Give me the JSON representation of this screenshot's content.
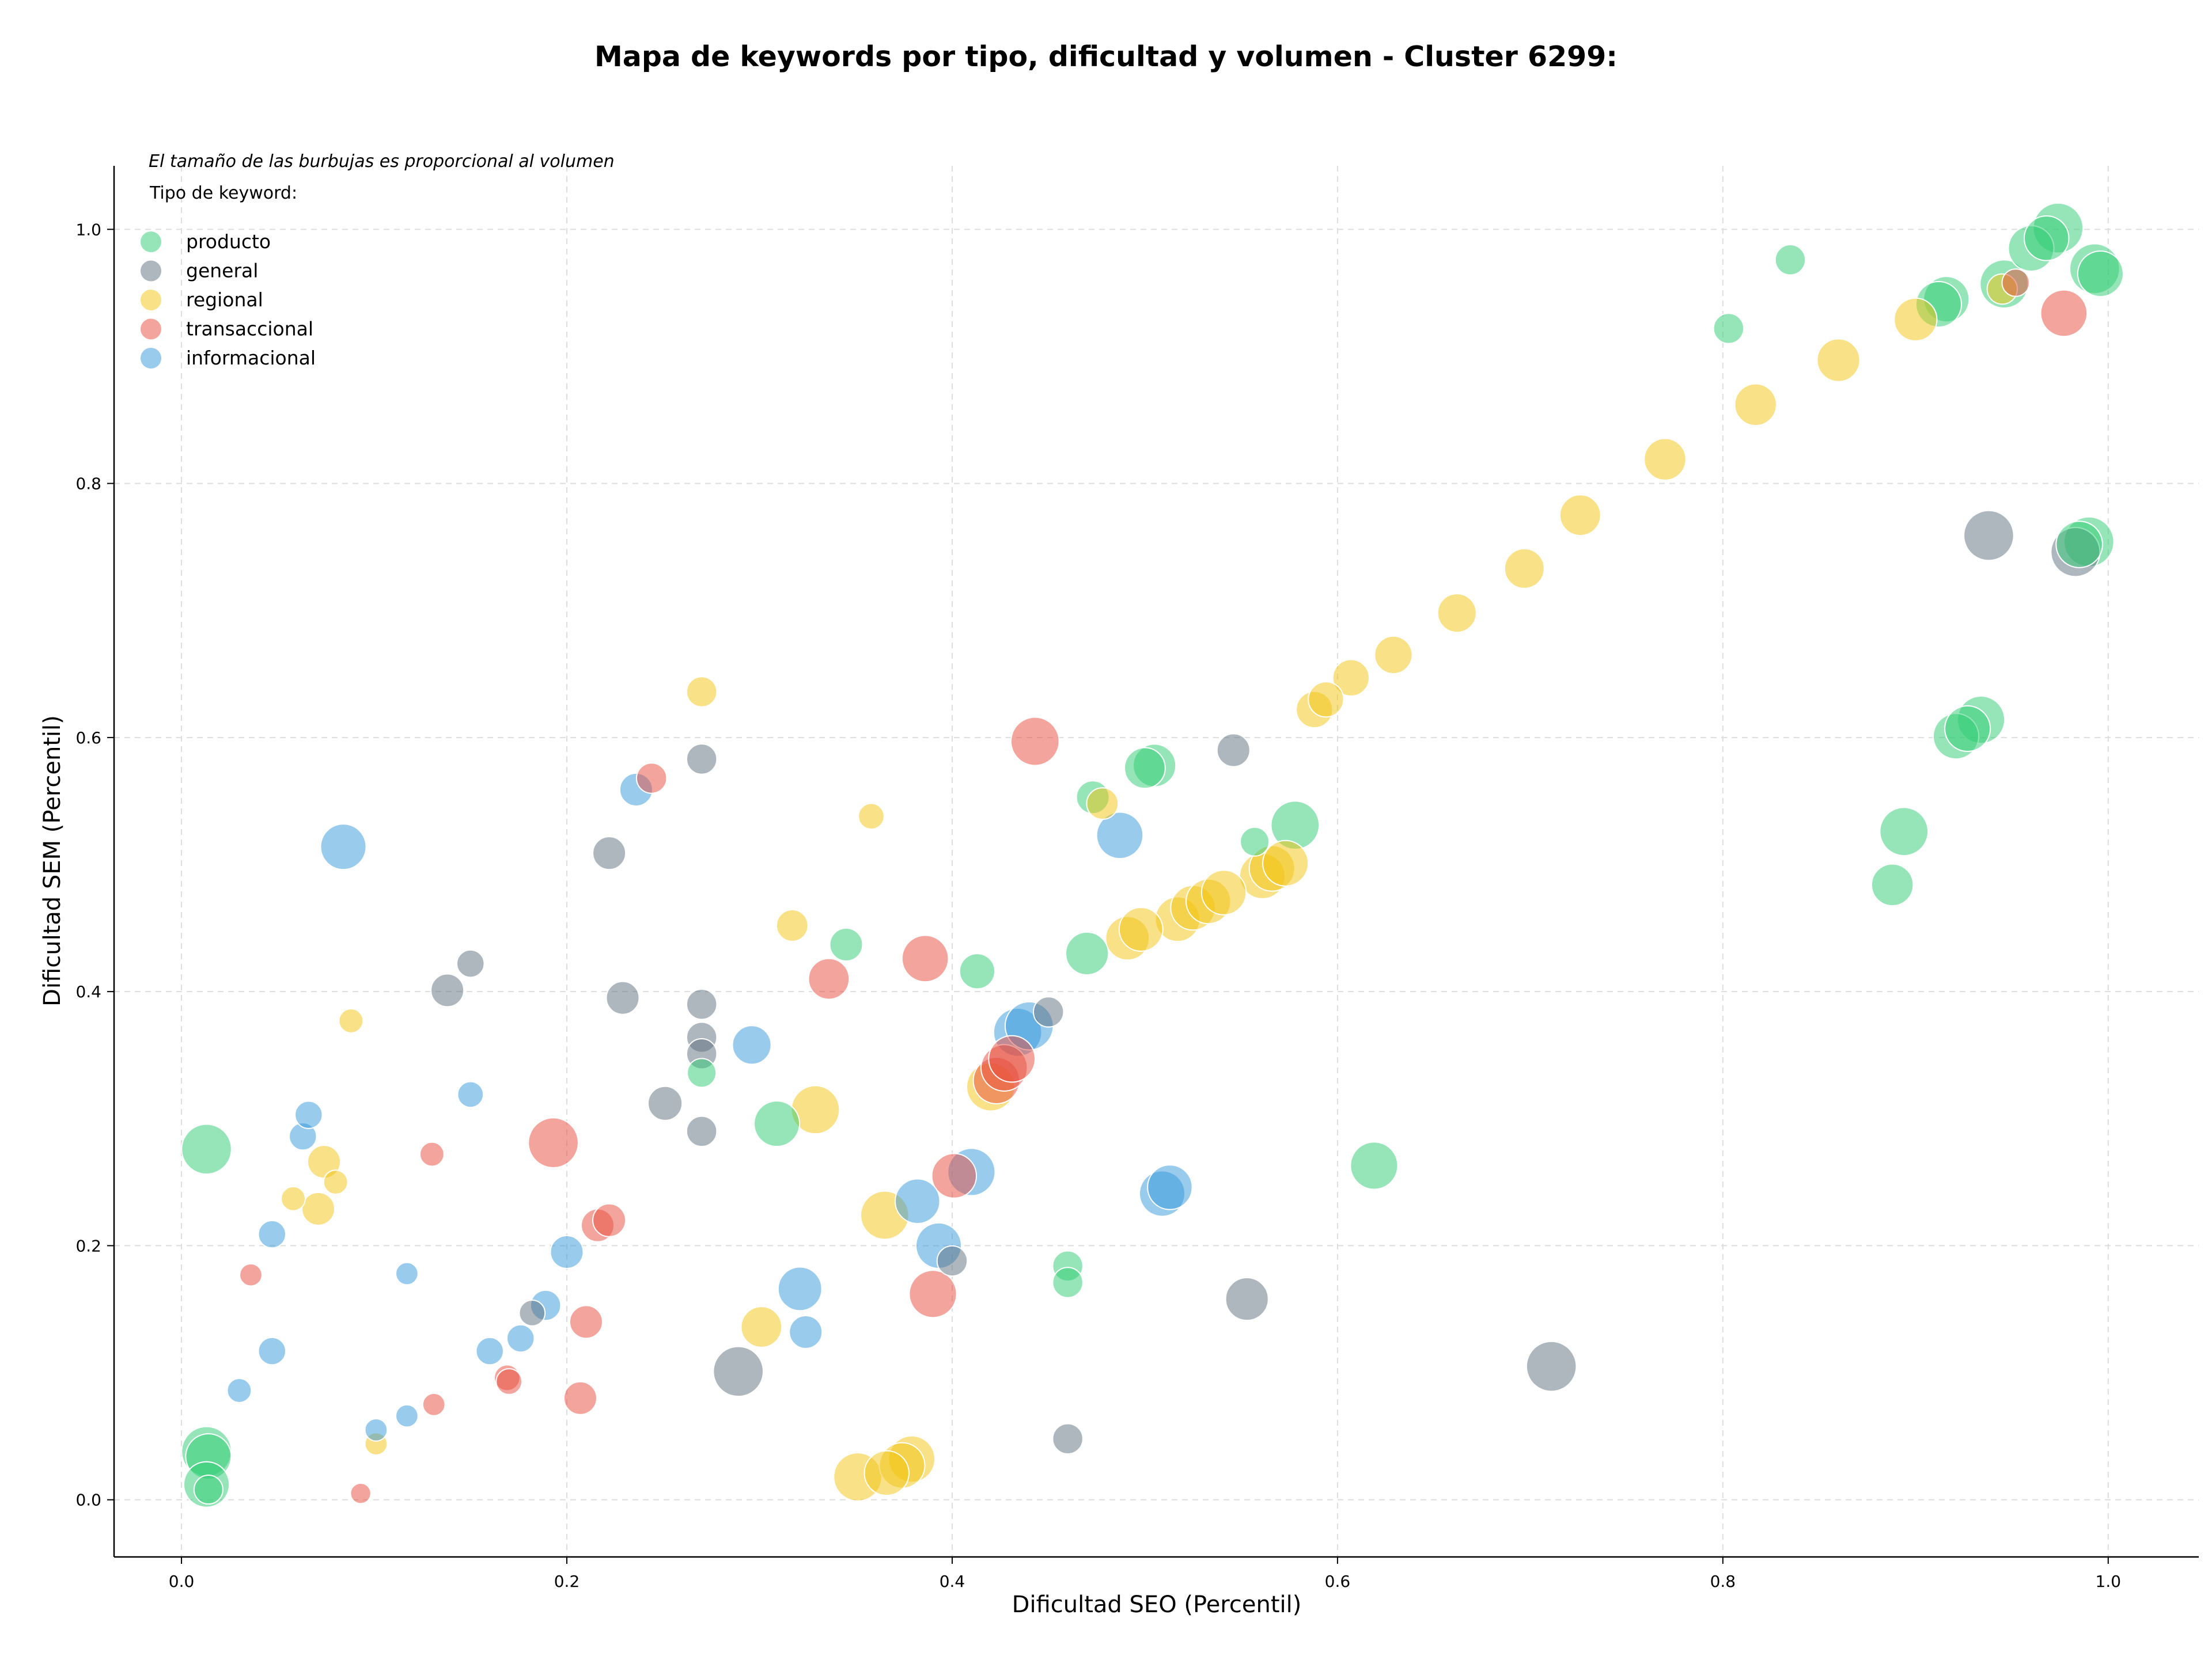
{
  "chart_data": {
    "type": "scatter",
    "title": "Mapa de keywords por tipo, dificultad y volumen - Cluster 6299:",
    "xlabel": "Dificultad SEO (Percentil)",
    "ylabel": "Dificultad SEM (Percentil)",
    "xlim": [
      -0.035,
      1.047
    ],
    "ylim": [
      -0.045,
      1.05
    ],
    "x_ticks": [
      "0.0",
      "0.2",
      "0.4",
      "0.6",
      "0.8",
      "1.0"
    ],
    "y_ticks": [
      "0.0",
      "0.2",
      "0.4",
      "0.6",
      "0.8",
      "1.0"
    ],
    "grid": true,
    "legend": {
      "placement": "top-left",
      "note": "El tamaño de las burbujas es proporcional al volumen",
      "title": "Tipo de keyword:",
      "entries": [
        "producto",
        "general",
        "regional",
        "transaccional",
        "informacional"
      ]
    },
    "series": [
      {
        "name": "producto",
        "color": "#2ecc71",
        "points": [
          [
            0.013,
            0.276,
            3
          ],
          [
            0.013,
            0.038,
            3
          ],
          [
            0.014,
            0.034,
            2.5
          ],
          [
            0.013,
            0.012,
            2.5
          ],
          [
            0.014,
            0.008,
            1
          ],
          [
            0.27,
            0.336,
            1
          ],
          [
            0.309,
            0.296,
            2.5
          ],
          [
            0.345,
            0.437,
            1.3
          ],
          [
            0.413,
            0.416,
            1.5
          ],
          [
            0.46,
            0.184,
            1.1
          ],
          [
            0.46,
            0.171,
            1.1
          ],
          [
            0.47,
            0.43,
            2.2
          ],
          [
            0.473,
            0.553,
            1.3
          ],
          [
            0.505,
            0.578,
            2.2
          ],
          [
            0.5,
            0.576,
            2
          ],
          [
            0.557,
            0.518,
            1
          ],
          [
            0.578,
            0.531,
            2.8
          ],
          [
            0.619,
            0.263,
            2.7
          ],
          [
            0.803,
            0.922,
            1.1
          ],
          [
            0.835,
            0.976,
            1.1
          ],
          [
            0.888,
            0.484,
            2.1
          ],
          [
            0.894,
            0.526,
            2.8
          ],
          [
            0.921,
            0.601,
            2.5
          ],
          [
            0.927,
            0.607,
            2.5
          ],
          [
            0.934,
            0.614,
            2.7
          ],
          [
            0.916,
            0.945,
            2.5
          ],
          [
            0.912,
            0.941,
            2.5
          ],
          [
            0.946,
            0.957,
            2.8
          ],
          [
            0.96,
            0.985,
            2.5
          ],
          [
            0.968,
            0.993,
            2.4
          ],
          [
            0.974,
            1.001,
            3
          ],
          [
            0.993,
            0.969,
            3
          ],
          [
            0.996,
            0.965,
            2.5
          ],
          [
            0.99,
            0.754,
            3
          ],
          [
            0.985,
            0.752,
            2.6
          ]
        ]
      },
      {
        "name": "general",
        "color": "#5d6d7e",
        "points": [
          [
            0.15,
            0.422,
            0.9
          ],
          [
            0.138,
            0.401,
            1.3
          ],
          [
            0.182,
            0.147,
            0.8
          ],
          [
            0.222,
            0.509,
            1.3
          ],
          [
            0.229,
            0.395,
            1.3
          ],
          [
            0.251,
            0.312,
            1.4
          ],
          [
            0.27,
            0.583,
            1.1
          ],
          [
            0.27,
            0.39,
            1.1
          ],
          [
            0.27,
            0.364,
            1.1
          ],
          [
            0.27,
            0.351,
            1.1
          ],
          [
            0.27,
            0.29,
            1.1
          ],
          [
            0.289,
            0.101,
            3
          ],
          [
            0.4,
            0.188,
            1.1
          ],
          [
            0.45,
            0.384,
            1.1
          ],
          [
            0.46,
            0.048,
            1.1
          ],
          [
            0.546,
            0.59,
            1.3
          ],
          [
            0.553,
            0.158,
            2.2
          ],
          [
            0.711,
            0.105,
            3
          ],
          [
            0.938,
            0.759,
            3
          ],
          [
            0.983,
            0.746,
            2.9
          ]
        ]
      },
      {
        "name": "regional",
        "color": "#f1c40f",
        "points": [
          [
            0.088,
            0.377,
            0.7
          ],
          [
            0.074,
            0.266,
            1.3
          ],
          [
            0.08,
            0.25,
            0.7
          ],
          [
            0.058,
            0.237,
            0.7
          ],
          [
            0.071,
            0.229,
            1.3
          ],
          [
            0.101,
            0.044,
            0.6
          ],
          [
            0.27,
            0.636,
            1.1
          ],
          [
            0.317,
            0.452,
            1.2
          ],
          [
            0.329,
            0.307,
            2.8
          ],
          [
            0.301,
            0.136,
            2
          ],
          [
            0.358,
            0.538,
            0.8
          ],
          [
            0.365,
            0.224,
            2.8
          ],
          [
            0.351,
            0.018,
            2.8
          ],
          [
            0.366,
            0.021,
            2.4
          ],
          [
            0.374,
            0.027,
            2.5
          ],
          [
            0.379,
            0.032,
            2.6
          ],
          [
            0.42,
            0.325,
            2.8
          ],
          [
            0.478,
            0.548,
            1.2
          ],
          [
            0.491,
            0.442,
            2.3
          ],
          [
            0.498,
            0.449,
            2.3
          ],
          [
            0.517,
            0.457,
            2.4
          ],
          [
            0.525,
            0.466,
            2.4
          ],
          [
            0.533,
            0.471,
            2.4
          ],
          [
            0.541,
            0.478,
            2.4
          ],
          [
            0.561,
            0.491,
            2.5
          ],
          [
            0.566,
            0.497,
            2.5
          ],
          [
            0.573,
            0.501,
            2.5
          ],
          [
            0.588,
            0.622,
            1.6
          ],
          [
            0.594,
            0.63,
            1.5
          ],
          [
            0.607,
            0.647,
            1.6
          ],
          [
            0.629,
            0.665,
            1.7
          ],
          [
            0.662,
            0.698,
            1.8
          ],
          [
            0.697,
            0.733,
            1.9
          ],
          [
            0.726,
            0.775,
            2
          ],
          [
            0.77,
            0.819,
            2.1
          ],
          [
            0.817,
            0.862,
            2.1
          ],
          [
            0.86,
            0.897,
            2.2
          ],
          [
            0.9,
            0.929,
            2.2
          ],
          [
            0.945,
            0.953,
            1.1
          ]
        ]
      },
      {
        "name": "transaccional",
        "color": "#e74c3c",
        "points": [
          [
            0.036,
            0.177,
            0.6
          ],
          [
            0.093,
            0.005,
            0.5
          ],
          [
            0.13,
            0.272,
            0.7
          ],
          [
            0.131,
            0.075,
            0.6
          ],
          [
            0.169,
            0.096,
            0.8
          ],
          [
            0.17,
            0.093,
            0.8
          ],
          [
            0.193,
            0.281,
            3
          ],
          [
            0.21,
            0.14,
            1.3
          ],
          [
            0.207,
            0.08,
            1.3
          ],
          [
            0.216,
            0.216,
            1.3
          ],
          [
            0.222,
            0.22,
            1.3
          ],
          [
            0.244,
            0.568,
            1.1
          ],
          [
            0.336,
            0.41,
            2
          ],
          [
            0.386,
            0.426,
            2.6
          ],
          [
            0.39,
            0.162,
            2.7
          ],
          [
            0.401,
            0.255,
            2.4
          ],
          [
            0.423,
            0.33,
            2.6
          ],
          [
            0.427,
            0.34,
            2.6
          ],
          [
            0.431,
            0.347,
            2.6
          ],
          [
            0.443,
            0.597,
            2.8
          ],
          [
            0.952,
            0.958,
            0.9
          ],
          [
            0.977,
            0.934,
            2.6
          ]
        ]
      },
      {
        "name": "informacional",
        "color": "#3498db",
        "points": [
          [
            0.03,
            0.086,
            0.7
          ],
          [
            0.047,
            0.209,
            0.9
          ],
          [
            0.047,
            0.117,
            0.9
          ],
          [
            0.063,
            0.286,
            0.9
          ],
          [
            0.066,
            0.303,
            0.9
          ],
          [
            0.084,
            0.514,
            2.5
          ],
          [
            0.101,
            0.055,
            0.6
          ],
          [
            0.117,
            0.066,
            0.6
          ],
          [
            0.117,
            0.178,
            0.6
          ],
          [
            0.15,
            0.319,
            0.8
          ],
          [
            0.16,
            0.117,
            0.9
          ],
          [
            0.176,
            0.127,
            0.9
          ],
          [
            0.189,
            0.153,
            1.1
          ],
          [
            0.2,
            0.195,
            1.3
          ],
          [
            0.236,
            0.559,
            1.3
          ],
          [
            0.296,
            0.358,
            1.8
          ],
          [
            0.321,
            0.166,
            2.3
          ],
          [
            0.324,
            0.132,
            1.3
          ],
          [
            0.382,
            0.235,
            2.4
          ],
          [
            0.393,
            0.2,
            2.5
          ],
          [
            0.41,
            0.258,
            2.7
          ],
          [
            0.434,
            0.368,
            2.8
          ],
          [
            0.44,
            0.373,
            2.8
          ],
          [
            0.487,
            0.523,
            2.6
          ],
          [
            0.509,
            0.241,
            2.5
          ],
          [
            0.513,
            0.246,
            2.4
          ]
        ]
      }
    ]
  }
}
